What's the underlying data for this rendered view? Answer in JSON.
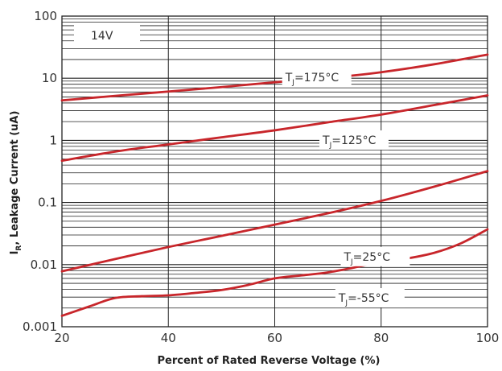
{
  "chart_data": {
    "type": "line",
    "condition_label": "14V",
    "xlabel": "Percent of Rated Reverse Voltage (%)",
    "ylabel": {
      "main": "I",
      "sub": "R",
      "rest": ", Leakage Current  (uA)"
    },
    "xlim": [
      20,
      100
    ],
    "ylim": [
      0.001,
      100
    ],
    "yscale": "log",
    "x_ticks": [
      "20",
      "40",
      "60",
      "80",
      "100"
    ],
    "y_ticks": [
      "0.001",
      "0.01",
      "0.1",
      "1",
      "10",
      "100"
    ],
    "grid": true,
    "line_color": "#c8262b",
    "series": [
      {
        "name": "TJ=175°C",
        "label": {
          "main": "T",
          "sub": "J",
          "rest": "=175°C"
        },
        "x": [
          20,
          30,
          40,
          50,
          60,
          70,
          80,
          90,
          100
        ],
        "y": [
          4.4,
          5.2,
          6.1,
          7.2,
          8.6,
          10.1,
          12.5,
          16.8,
          24
        ]
      },
      {
        "name": "TJ=125°C",
        "label": {
          "main": "T",
          "sub": "J",
          "rest": "=125°C"
        },
        "x": [
          20,
          30,
          40,
          50,
          60,
          70,
          80,
          90,
          100
        ],
        "y": [
          0.47,
          0.66,
          0.86,
          1.12,
          1.45,
          1.95,
          2.6,
          3.7,
          5.3
        ]
      },
      {
        "name": "TJ=25°C",
        "label": {
          "main": "T",
          "sub": "J",
          "rest": "=25°C"
        },
        "x": [
          20,
          30,
          40,
          50,
          60,
          70,
          80,
          90,
          100
        ],
        "y": [
          0.0078,
          0.0123,
          0.0192,
          0.029,
          0.044,
          0.067,
          0.106,
          0.18,
          0.32
        ]
      },
      {
        "name": "TJ=-55°C",
        "label": {
          "main": "T",
          "sub": "J",
          "rest": "=-55°C"
        },
        "x": [
          20,
          25,
          30,
          35,
          40,
          45,
          50,
          55,
          60,
          65,
          70,
          75,
          80,
          85,
          90,
          95,
          100
        ],
        "y": [
          0.0015,
          0.0021,
          0.0029,
          0.0031,
          0.0032,
          0.0035,
          0.0039,
          0.0047,
          0.006,
          0.0067,
          0.0075,
          0.009,
          0.011,
          0.0126,
          0.0155,
          0.022,
          0.037
        ]
      }
    ]
  }
}
